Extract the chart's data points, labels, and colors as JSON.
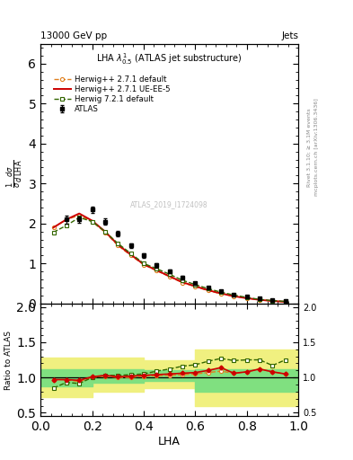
{
  "title_top_left": "13000 GeV pp",
  "title_top_right": "Jets",
  "plot_title": "LHA $\\lambda^{1}_{0.5}$ (ATLAS jet substructure)",
  "xlabel": "LHA",
  "ylabel_ratio": "Ratio to ATLAS",
  "watermark": "ATLAS_2019_I1724098",
  "right_label1": "Rivet 3.1.10; ≥ 3.1M events",
  "right_label2": "mcplots.cern.ch [arXiv:1306.3436]",
  "atlas_data_x": [
    0.1,
    0.15,
    0.2,
    0.25,
    0.3,
    0.35,
    0.4,
    0.45,
    0.5,
    0.55,
    0.6,
    0.65,
    0.7,
    0.75,
    0.8,
    0.85,
    0.9,
    0.95
  ],
  "atlas_data_y": [
    2.1,
    2.1,
    2.35,
    2.05,
    1.75,
    1.45,
    1.2,
    0.95,
    0.8,
    0.65,
    0.5,
    0.4,
    0.3,
    0.22,
    0.17,
    0.12,
    0.08,
    0.05
  ],
  "atlas_data_yerr": [
    0.1,
    0.08,
    0.08,
    0.07,
    0.06,
    0.06,
    0.05,
    0.05,
    0.04,
    0.04,
    0.03,
    0.03,
    0.02,
    0.02,
    0.015,
    0.01,
    0.008,
    0.005
  ],
  "herwig_default_x": [
    0.05,
    0.1,
    0.15,
    0.2,
    0.25,
    0.3,
    0.35,
    0.4,
    0.45,
    0.5,
    0.55,
    0.6,
    0.65,
    0.7,
    0.75,
    0.8,
    0.85,
    0.9,
    0.95
  ],
  "herwig_default_y": [
    1.9,
    2.1,
    2.2,
    2.05,
    1.78,
    1.45,
    1.2,
    0.97,
    0.82,
    0.67,
    0.52,
    0.42,
    0.32,
    0.24,
    0.18,
    0.13,
    0.09,
    0.06,
    0.04
  ],
  "herwig_ueee5_x": [
    0.05,
    0.1,
    0.15,
    0.2,
    0.25,
    0.3,
    0.35,
    0.4,
    0.45,
    0.5,
    0.55,
    0.6,
    0.65,
    0.7,
    0.75,
    0.8,
    0.85,
    0.9,
    0.95
  ],
  "herwig_ueee5_y": [
    1.9,
    2.1,
    2.25,
    2.07,
    1.8,
    1.47,
    1.22,
    0.98,
    0.83,
    0.68,
    0.53,
    0.43,
    0.33,
    0.25,
    0.18,
    0.13,
    0.09,
    0.06,
    0.04
  ],
  "herwig721_x": [
    0.05,
    0.1,
    0.15,
    0.2,
    0.25,
    0.3,
    0.35,
    0.4,
    0.45,
    0.5,
    0.55,
    0.6,
    0.65,
    0.7,
    0.75,
    0.8,
    0.85,
    0.9,
    0.95
  ],
  "herwig721_y": [
    1.78,
    1.95,
    2.15,
    2.05,
    1.8,
    1.5,
    1.25,
    1.0,
    0.87,
    0.73,
    0.58,
    0.47,
    0.37,
    0.28,
    0.21,
    0.15,
    0.1,
    0.07,
    0.05
  ],
  "ratio_herwig_default_x": [
    0.05,
    0.1,
    0.15,
    0.2,
    0.25,
    0.3,
    0.35,
    0.4,
    0.45,
    0.5,
    0.55,
    0.6,
    0.65,
    0.7,
    0.75,
    0.8,
    0.85,
    0.9,
    0.95
  ],
  "ratio_herwig_default_y": [
    0.97,
    0.97,
    0.94,
    1.0,
    1.02,
    1.0,
    1.0,
    1.02,
    1.025,
    1.03,
    1.04,
    1.05,
    1.07,
    1.09,
    1.06,
    1.08,
    1.12,
    1.08,
    1.05
  ],
  "ratio_herwig_ueee5_x": [
    0.05,
    0.1,
    0.15,
    0.2,
    0.25,
    0.3,
    0.35,
    0.4,
    0.45,
    0.5,
    0.55,
    0.6,
    0.65,
    0.7,
    0.75,
    0.8,
    0.85,
    0.9,
    0.95
  ],
  "ratio_herwig_ueee5_y": [
    0.97,
    0.97,
    0.96,
    1.01,
    1.03,
    1.01,
    1.02,
    1.03,
    1.04,
    1.05,
    1.06,
    1.07,
    1.1,
    1.14,
    1.06,
    1.08,
    1.12,
    1.08,
    1.05
  ],
  "ratio_herwig721_x": [
    0.05,
    0.1,
    0.15,
    0.2,
    0.25,
    0.3,
    0.35,
    0.4,
    0.45,
    0.5,
    0.55,
    0.6,
    0.65,
    0.7,
    0.75,
    0.8,
    0.85,
    0.9,
    0.95
  ],
  "ratio_herwig721_y": [
    0.85,
    0.93,
    0.915,
    1.0,
    1.03,
    1.03,
    1.04,
    1.05,
    1.09,
    1.12,
    1.16,
    1.18,
    1.23,
    1.27,
    1.24,
    1.25,
    1.25,
    1.17,
    1.25
  ],
  "band_x_edges": [
    0.0,
    0.1,
    0.2,
    0.4,
    0.6,
    0.75,
    1.0
  ],
  "band_green_low": [
    0.88,
    0.88,
    0.93,
    0.95,
    0.8,
    0.8,
    0.8
  ],
  "band_green_high": [
    1.12,
    1.12,
    1.12,
    1.1,
    1.12,
    1.12,
    1.12
  ],
  "band_yellow_low": [
    0.72,
    0.72,
    0.8,
    0.85,
    0.6,
    0.6,
    0.6
  ],
  "band_yellow_high": [
    1.28,
    1.28,
    1.28,
    1.25,
    1.4,
    1.4,
    1.4
  ],
  "xlim": [
    0,
    1.0
  ],
  "ylim_main": [
    0,
    6.5
  ],
  "ylim_ratio": [
    0.45,
    2.05
  ],
  "color_atlas": "#000000",
  "color_herwig_default": "#e08020",
  "color_herwig_ueee5": "#cc0000",
  "color_herwig721": "#336600",
  "color_band_green": "#80e080",
  "color_band_yellow": "#f0f080",
  "yticks_main": [
    0,
    1,
    2,
    3,
    4,
    5,
    6
  ],
  "yticks_ratio": [
    0.5,
    1.0,
    1.5,
    2.0
  ]
}
